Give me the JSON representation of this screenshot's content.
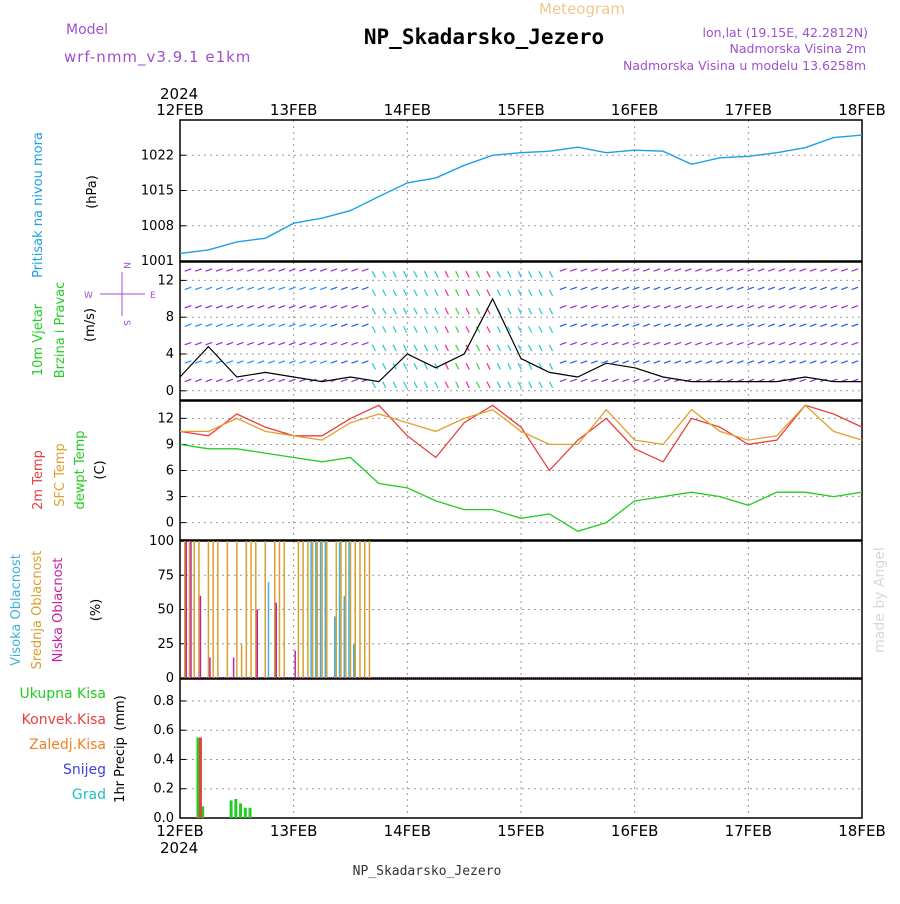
{
  "header": {
    "model_label": "Model",
    "model_name": "wrf-nmm_v3.9.1 e1km",
    "product": "Meteogram",
    "station": "NP_Skadarsko_Jezero",
    "lonlat": "lon,lat (19.15E, 42.2812N)",
    "elevation": "Nadmorska Visina 2m",
    "model_elevation": "Nadmorska Visina u modelu 13.6258m",
    "year": "2024",
    "footer_station": "NP_Skadarsko_Jezero",
    "credit": "made by Angel"
  },
  "colors": {
    "pressure": "#1ea0e6",
    "t2m": "#e84040",
    "sfc": "#e0a030",
    "dew": "#22cc22",
    "high_cloud": "#40b0e0",
    "mid_cloud": "#d8a030",
    "low_cloud": "#c020a0",
    "total_precip": "#22cc22",
    "conv_precip": "#e84040",
    "frz_precip": "#f08020",
    "snow": "#4040e0",
    "grad": "#20c0c0",
    "wind_label": "#22cc22",
    "wind_speed_line": "#000000",
    "wind_gust": "#e84040",
    "axis_label": "#000000",
    "model_text": "#a050d0",
    "credit": "#d8d8d8"
  },
  "chart_data": [
    {
      "id": "pressure",
      "type": "line",
      "ylabel_title": "Pritisak na nivou mora",
      "ylabel_unit": "(hPa)",
      "ylim": [
        1001,
        1029
      ],
      "yticks": [
        1001,
        1008,
        1015,
        1022
      ],
      "x": [
        0,
        6,
        12,
        18,
        24,
        30,
        36,
        42,
        48,
        54,
        60,
        66,
        72,
        78,
        84,
        90,
        96,
        102,
        108,
        114,
        120,
        126,
        132,
        138,
        144
      ],
      "series": [
        {
          "name": "",
          "values": [
            1002.5,
            1003.2,
            1004.8,
            1005.5,
            1008.5,
            1009.5,
            1011.0,
            1013.8,
            1016.5,
            1017.5,
            1020.0,
            1022.0,
            1022.5,
            1022.8,
            1023.6,
            1022.5,
            1023.0,
            1022.8,
            1020.2,
            1021.5,
            1021.8,
            1022.5,
            1023.5,
            1025.5,
            1026.0
          ]
        }
      ]
    },
    {
      "id": "wind",
      "type": "line",
      "ylabel_title1": "10m Vjetar",
      "ylabel_title2": "Brzina i Pravac",
      "ylabel_unit": "(m/s)",
      "compass_w": "W",
      "compass_e": "E",
      "compass_n": "N",
      "compass_s": "S",
      "ylim": [
        -1,
        14
      ],
      "yticks": [
        0,
        4,
        8,
        12
      ],
      "x": [
        0,
        6,
        12,
        18,
        24,
        30,
        36,
        42,
        48,
        54,
        60,
        66,
        72,
        78,
        84,
        90,
        96,
        102,
        108,
        114,
        120,
        126,
        132,
        138,
        144
      ],
      "series": [
        {
          "name": "",
          "values": [
            1.5,
            4.8,
            1.5,
            2.0,
            1.5,
            1.0,
            1.5,
            1.0,
            4.0,
            2.5,
            4.0,
            10.0,
            3.5,
            2.0,
            1.5,
            3.0,
            2.5,
            1.5,
            1.0,
            1.0,
            1.0,
            1.0,
            1.5,
            1.0,
            1.0
          ]
        }
      ]
    },
    {
      "id": "temperature",
      "type": "line",
      "ylabel_title1": "2m Temp",
      "ylabel_title2": "SFC Temp",
      "ylabel_title3": "dewpt Temp",
      "ylabel_unit": "(C)",
      "ylim": [
        -2,
        14
      ],
      "yticks": [
        0,
        3,
        6,
        9,
        12
      ],
      "x": [
        0,
        6,
        12,
        18,
        24,
        30,
        36,
        42,
        48,
        54,
        60,
        66,
        72,
        78,
        84,
        90,
        96,
        102,
        108,
        114,
        120,
        126,
        132,
        138,
        144
      ],
      "series": [
        {
          "name": "2m Temp",
          "values": [
            10.5,
            10.0,
            12.5,
            11.0,
            10.0,
            10.0,
            12.0,
            13.5,
            10.0,
            7.5,
            11.5,
            13.5,
            11.0,
            6.0,
            9.5,
            12.0,
            8.5,
            7.0,
            12.0,
            11.0,
            9.0,
            9.5,
            13.5,
            12.5,
            11.0
          ]
        },
        {
          "name": "SFC Temp",
          "values": [
            10.5,
            10.5,
            12.0,
            10.5,
            10.0,
            9.5,
            11.5,
            12.5,
            11.5,
            10.5,
            12.0,
            13.0,
            10.5,
            9.0,
            9.0,
            13.0,
            9.5,
            9.0,
            13.0,
            10.5,
            9.5,
            10.0,
            13.5,
            10.5,
            9.5
          ]
        },
        {
          "name": "dewpt Temp",
          "values": [
            9.0,
            8.5,
            8.5,
            8.0,
            7.5,
            7.0,
            7.5,
            4.5,
            4.0,
            2.5,
            1.5,
            1.5,
            0.5,
            1.0,
            -1.0,
            0.0,
            2.5,
            3.0,
            3.5,
            3.0,
            2.0,
            3.5,
            3.5,
            3.0,
            3.5
          ]
        }
      ]
    },
    {
      "id": "cloud",
      "type": "bar",
      "ylabel_title1": "Visoka Oblacnost",
      "ylabel_title2": "Srednja Oblacnost",
      "ylabel_title3": "Niska Oblacnost",
      "ylabel_unit": "(%)",
      "ylim": [
        0,
        100
      ],
      "yticks": [
        0,
        25,
        50,
        75,
        100
      ],
      "x": [
        1,
        2,
        3,
        4,
        5,
        6,
        7,
        8,
        10,
        11,
        12,
        13,
        14,
        15,
        16,
        18,
        19,
        20,
        21,
        22,
        24,
        25,
        26,
        27,
        28,
        29,
        30,
        31,
        33,
        34,
        35,
        36,
        37,
        38,
        39,
        40
      ],
      "series": [
        {
          "name": "Visoka Oblacnost",
          "values": [
            0,
            0,
            0,
            0,
            0,
            0,
            0,
            0,
            0,
            0,
            0,
            0,
            0,
            0,
            0,
            0,
            70,
            0,
            0,
            0,
            0,
            0,
            0,
            0,
            100,
            100,
            100,
            100,
            45,
            100,
            60,
            100,
            25,
            0,
            0,
            0
          ]
        },
        {
          "name": "Srednja Oblacnost",
          "values": [
            100,
            100,
            100,
            100,
            0,
            100,
            100,
            100,
            100,
            0,
            100,
            25,
            100,
            100,
            100,
            100,
            0,
            100,
            100,
            100,
            0,
            100,
            100,
            100,
            100,
            100,
            100,
            100,
            100,
            100,
            100,
            100,
            100,
            100,
            100,
            100
          ]
        },
        {
          "name": "Niska Oblacnost",
          "values": [
            100,
            100,
            0,
            60,
            0,
            15,
            0,
            0,
            0,
            15,
            0,
            0,
            0,
            0,
            50,
            0,
            0,
            55,
            0,
            0,
            20,
            0,
            0,
            0,
            0,
            0,
            0,
            0,
            0,
            0,
            0,
            0,
            0,
            0,
            0,
            0
          ]
        }
      ]
    },
    {
      "id": "precip",
      "type": "bar",
      "ylabel_title": "1hr Precip",
      "ylabel_unit": "(mm)",
      "legend": [
        "Ukupna Kisa",
        "Konvek.Kisa",
        "Zaledj.Kisa",
        "Snijeg",
        "Grad"
      ],
      "ylim": [
        0,
        0.95
      ],
      "yticks": [
        0,
        0.2,
        0.4,
        0.6,
        0.8
      ],
      "x": [
        4,
        5,
        11,
        12,
        13,
        14,
        15
      ],
      "series": [
        {
          "name": "Ukupna Kisa",
          "values": [
            0.55,
            0.08,
            0.12,
            0.13,
            0.1,
            0.07,
            0.07
          ]
        },
        {
          "name": "Konvek.Kisa",
          "values": [
            0.55,
            0.0,
            0.0,
            0.0,
            0.0,
            0.0,
            0.0
          ]
        }
      ]
    }
  ],
  "time_axis": {
    "start_hour": 0,
    "end_hour": 144,
    "tick_labels": [
      "12FEB",
      "13FEB",
      "14FEB",
      "15FEB",
      "16FEB",
      "17FEB",
      "18FEB"
    ]
  }
}
